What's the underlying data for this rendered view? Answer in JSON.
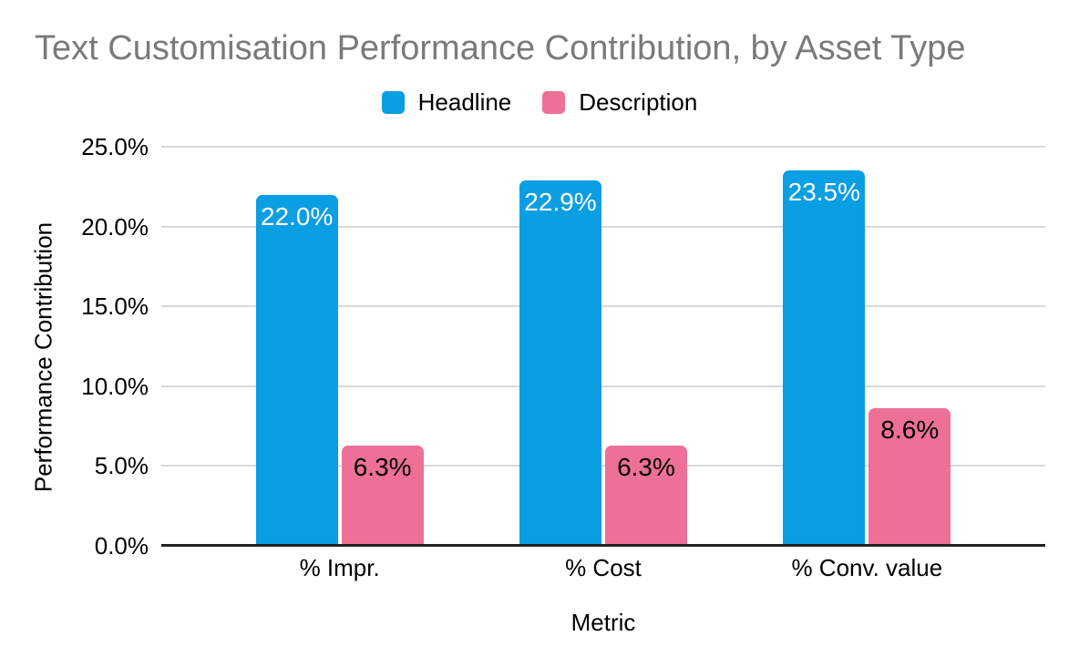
{
  "chart_data": {
    "type": "bar",
    "title": "Text Customisation Performance Contribution, by Asset Type",
    "categories": [
      "% Impr.",
      "% Cost",
      "% Conv. value"
    ],
    "series": [
      {
        "name": "Headline",
        "color": "#0a9ee2",
        "value_label_color": "#ffffff",
        "values": [
          22.0,
          22.9,
          23.5
        ],
        "value_labels": [
          "22.0%",
          "22.9%",
          "23.5%"
        ]
      },
      {
        "name": "Description",
        "color": "#ee7096",
        "value_label_color": "#000000",
        "values": [
          6.3,
          6.3,
          8.6
        ],
        "value_labels": [
          "6.3%",
          "6.3%",
          "8.6%"
        ]
      }
    ],
    "xlabel": "Metric",
    "ylabel": "Performance Contribution",
    "ylim": [
      0,
      25
    ],
    "ytick_step": 5,
    "ytick_labels": [
      "0.0%",
      "5.0%",
      "10.0%",
      "15.0%",
      "20.0%",
      "25.0%"
    ],
    "grid": true,
    "legend_position": "top"
  },
  "colors": {
    "title_text": "#7a7a7a",
    "gridline": "#d9d9d9",
    "axis_baseline": "#212121",
    "tick_text": "#000000",
    "background": "#ffffff"
  }
}
